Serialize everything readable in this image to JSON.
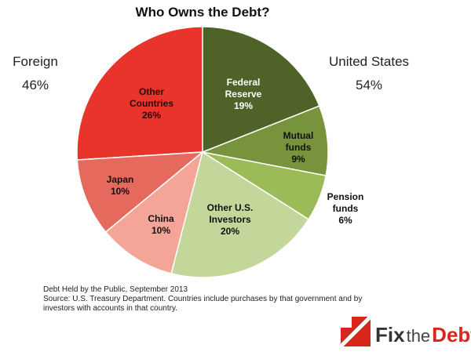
{
  "chart_data": {
    "type": "pie",
    "title": "Who Owns the Debt?",
    "categories": [
      "Federal Reserve",
      "Mutual funds",
      "Pension funds",
      "Other U.S. Investors",
      "China",
      "Japan",
      "Other Countries"
    ],
    "values": [
      19,
      9,
      6,
      20,
      10,
      10,
      26
    ],
    "value_labels": [
      "19%",
      "9%",
      "6%",
      "20%",
      "10%",
      "10%",
      "26%"
    ],
    "colors": [
      "#4f6228",
      "#77933c",
      "#9bbb59",
      "#c4d79b",
      "#f4a597",
      "#e5695c",
      "#e8342a"
    ],
    "groups": [
      {
        "name": "Foreign",
        "label": "46%"
      },
      {
        "name": "United States",
        "label": "54%"
      }
    ],
    "notes": [
      "Debt Held by the Public, September 2013",
      "Source: U.S. Treasury Department. Countries include purchases by that government and by investors with accounts in that country."
    ]
  },
  "logo": {
    "parts": [
      "Fix",
      "the",
      "Debt"
    ]
  }
}
